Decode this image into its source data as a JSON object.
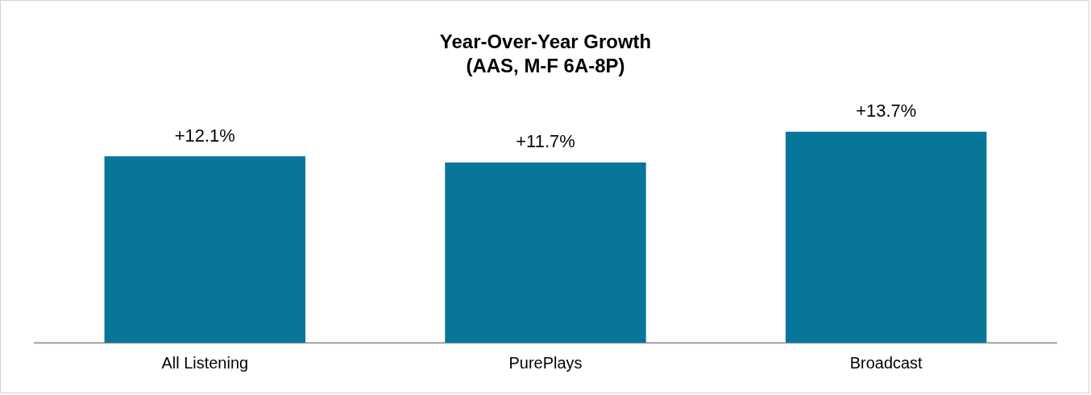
{
  "chart_data": {
    "type": "bar",
    "title": "Year-Over-Year Growth",
    "subtitle": "(AAS, M-F 6A-8P)",
    "categories": [
      "All Listening",
      "PurePlays",
      "Broadcast"
    ],
    "values": [
      12.1,
      11.7,
      13.7
    ],
    "value_labels": [
      "+12.1%",
      "+11.7%",
      "+13.7%"
    ],
    "color": "#08759a",
    "tick_labels": "x",
    "grid": false,
    "legend": false
  }
}
